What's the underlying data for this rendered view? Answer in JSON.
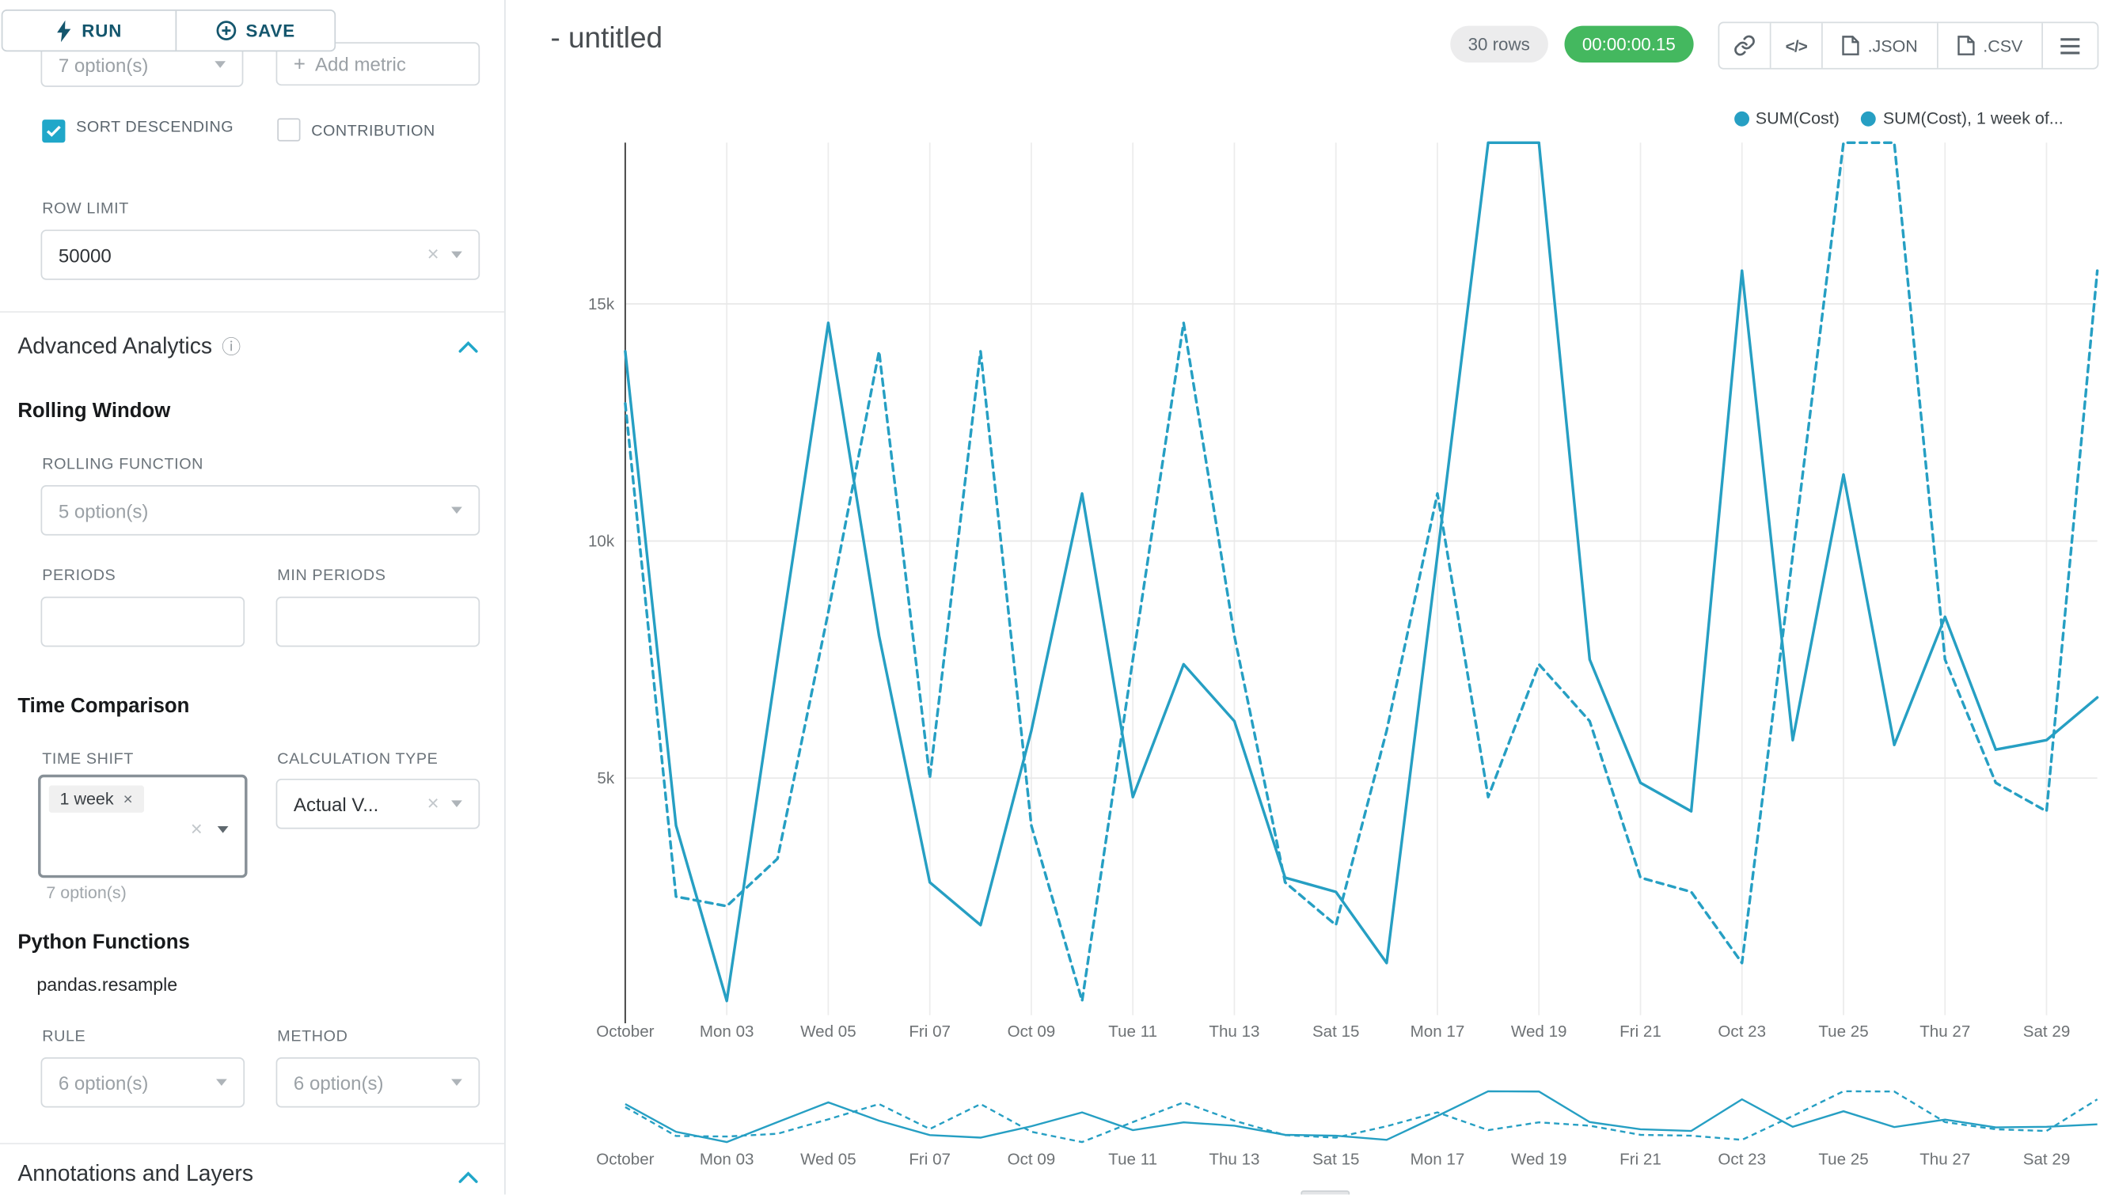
{
  "panel": {
    "run_label": "RUN",
    "save_label": "SAVE",
    "metric_select_placeholder": "7 option(s)",
    "add_metric_label": "Add metric",
    "sort_descending_label": "SORT DESCENDING",
    "contribution_label": "CONTRIBUTION",
    "row_limit_label": "ROW LIMIT",
    "row_limit_value": "50000",
    "advanced_analytics_title": "Advanced Analytics",
    "rolling_window_title": "Rolling Window",
    "rolling_function_label": "ROLLING FUNCTION",
    "rolling_function_placeholder": "5 option(s)",
    "periods_label": "PERIODS",
    "min_periods_label": "MIN PERIODS",
    "time_comparison_title": "Time Comparison",
    "time_shift_label": "TIME SHIFT",
    "time_shift_tag": "1 week",
    "time_shift_helper": "7 option(s)",
    "calculation_type_label": "CALCULATION TYPE",
    "calculation_type_value": "Actual V...",
    "python_functions_title": "Python Functions",
    "pandas_resample_label": "pandas.resample",
    "rule_label": "RULE",
    "rule_placeholder": "6 option(s)",
    "method_label": "METHOD",
    "method_placeholder": "6 option(s)",
    "annotations_title": "Annotations and Layers"
  },
  "header": {
    "title": "- untitled",
    "rows_badge": "30 rows",
    "timer_badge": "00:00:00.15",
    "code_button_label": "</>",
    "json_button_label": ".JSON",
    "csv_button_label": ".CSV"
  },
  "legend": [
    {
      "label": "SUM(Cost)"
    },
    {
      "label": "SUM(Cost), 1 week of..."
    }
  ],
  "colors": {
    "accent": "#20a7c9",
    "series_line": "#269fc3",
    "timer_badge_bg": "#44b85f",
    "rows_badge_bg": "#ececed",
    "focused_border": "#879097"
  },
  "chart_data": {
    "type": "line",
    "title": "- untitled",
    "x_domain_days": [
      1,
      30
    ],
    "x_ticks": [
      {
        "day": 1,
        "label": "October"
      },
      {
        "day": 3,
        "label": "Mon 03"
      },
      {
        "day": 5,
        "label": "Wed 05"
      },
      {
        "day": 7,
        "label": "Fri 07"
      },
      {
        "day": 9,
        "label": "Oct 09"
      },
      {
        "day": 11,
        "label": "Tue 11"
      },
      {
        "day": 13,
        "label": "Thu 13"
      },
      {
        "day": 15,
        "label": "Sat 15"
      },
      {
        "day": 17,
        "label": "Mon 17"
      },
      {
        "day": 19,
        "label": "Wed 19"
      },
      {
        "day": 21,
        "label": "Fri 21"
      },
      {
        "day": 23,
        "label": "Oct 23"
      },
      {
        "day": 25,
        "label": "Tue 25"
      },
      {
        "day": 27,
        "label": "Thu 27"
      },
      {
        "day": 29,
        "label": "Sat 29"
      }
    ],
    "y_ticks": [
      {
        "value": 5000,
        "label": "5k"
      },
      {
        "value": 10000,
        "label": "10k"
      },
      {
        "value": 15000,
        "label": "15k"
      }
    ],
    "y_max": 18400,
    "mini_y_max": 18600,
    "grid": true,
    "legend_position": "top-right",
    "color": "#269fc3",
    "series": [
      {
        "name": "SUM(Cost)",
        "style": "solid",
        "values": [
          14000,
          4000,
          300,
          7500,
          14600,
          8000,
          2800,
          1900,
          6000,
          11000,
          4600,
          7400,
          6200,
          2900,
          2600,
          1100,
          9700,
          18600,
          18500,
          7500,
          4900,
          4300,
          15700,
          5800,
          11400,
          5700,
          8400,
          5600,
          5800,
          6700
        ]
      },
      {
        "name": "SUM(Cost), 1 week of...",
        "style": "dashed",
        "values": [
          12900,
          2500,
          2300,
          3300,
          8500,
          14000,
          5000,
          14000,
          4000,
          300,
          7500,
          14600,
          8000,
          2800,
          1900,
          6000,
          11000,
          4600,
          7400,
          6200,
          2900,
          2600,
          1100,
          9700,
          18600,
          18500,
          7500,
          4900,
          4300,
          15700
        ]
      }
    ]
  }
}
